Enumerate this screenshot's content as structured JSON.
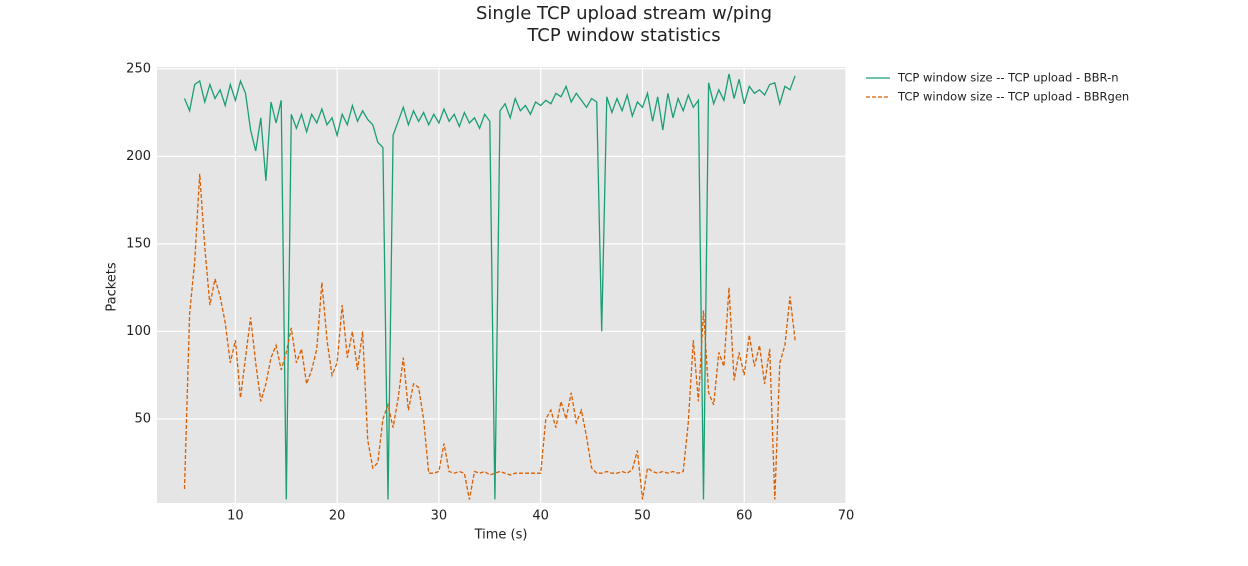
{
  "chart_data": {
    "type": "line",
    "title": "Single TCP upload stream w/ping",
    "subtitle": "TCP window statistics",
    "x_label": "Time (s)",
    "y_label": "Packets",
    "xlim": [
      2.3,
      70
    ],
    "ylim": [
      2,
      251
    ],
    "xticks": [
      10,
      20,
      30,
      40,
      50,
      60,
      70
    ],
    "yticks": [
      50,
      100,
      150,
      200,
      250
    ],
    "grid": true,
    "x": [
      5,
      5.5,
      6,
      6.5,
      7,
      7.5,
      8,
      8.5,
      9,
      9.5,
      10,
      10.5,
      11,
      11.5,
      12,
      12.5,
      13,
      13.5,
      14,
      14.5,
      15,
      15.5,
      16,
      16.5,
      17,
      17.5,
      18,
      18.5,
      19,
      19.5,
      20,
      20.5,
      21,
      21.5,
      22,
      22.5,
      23,
      23.5,
      24,
      24.5,
      25,
      25.5,
      26,
      26.5,
      27,
      27.5,
      28,
      28.5,
      29,
      29.5,
      30,
      30.5,
      31,
      31.5,
      32,
      32.5,
      33,
      33.5,
      34,
      34.5,
      35,
      35.5,
      36,
      36.5,
      37,
      37.5,
      38,
      38.5,
      39,
      39.5,
      40,
      40.5,
      41,
      41.5,
      42,
      42.5,
      43,
      43.5,
      44,
      44.5,
      45,
      45.5,
      46,
      46.5,
      47,
      47.5,
      48,
      48.5,
      49,
      49.5,
      50,
      50.5,
      51,
      51.5,
      52,
      52.5,
      53,
      53.5,
      54,
      54.5,
      55,
      55.5,
      56,
      56.5,
      57,
      57.5,
      58,
      58.5,
      59,
      59.5,
      60,
      60.5,
      61,
      61.5,
      62,
      62.5,
      63,
      63.5,
      64,
      64.5,
      65
    ],
    "series": [
      {
        "name": "TCP window size -- TCP upload - BBR-n",
        "color": "#1b9e77",
        "dash": false,
        "values": [
          233,
          226,
          241,
          243,
          231,
          241,
          233,
          238,
          229,
          241,
          232,
          243,
          236,
          215,
          203,
          222,
          186,
          231,
          219,
          232,
          4,
          224,
          216,
          224,
          214,
          224,
          219,
          227,
          218,
          222,
          212,
          224,
          218,
          229,
          220,
          226,
          221,
          218,
          208,
          205,
          4,
          212,
          220,
          228,
          218,
          226,
          220,
          225,
          218,
          224,
          219,
          227,
          220,
          224,
          217,
          225,
          219,
          222,
          216,
          224,
          220,
          4,
          226,
          230,
          222,
          233,
          226,
          229,
          224,
          231,
          229,
          232,
          230,
          236,
          234,
          240,
          231,
          236,
          232,
          228,
          233,
          231,
          100,
          234,
          225,
          233,
          226,
          235,
          223,
          231,
          228,
          236,
          220,
          234,
          215,
          236,
          222,
          233,
          226,
          235,
          228,
          232,
          4,
          242,
          230,
          238,
          232,
          247,
          233,
          244,
          230,
          240,
          236,
          238,
          235,
          241,
          242,
          230,
          240,
          238,
          246
        ]
      },
      {
        "name": "TCP window size -- TCP upload - BBRgen",
        "color": "#d95f02",
        "dash": true,
        "values": [
          10,
          110,
          140,
          190,
          148,
          115,
          130,
          120,
          105,
          82,
          95,
          62,
          85,
          108,
          82,
          60,
          70,
          85,
          92,
          78,
          88,
          102,
          82,
          90,
          70,
          78,
          90,
          128,
          95,
          75,
          82,
          115,
          85,
          100,
          78,
          100,
          38,
          22,
          25,
          50,
          58,
          45,
          62,
          85,
          55,
          70,
          68,
          50,
          19,
          19,
          20,
          36,
          20,
          19,
          20,
          19,
          4,
          20,
          19,
          20,
          18,
          19,
          20,
          19,
          18,
          19,
          19,
          19,
          19,
          19,
          19,
          50,
          55,
          45,
          60,
          50,
          65,
          48,
          55,
          40,
          22,
          19,
          19,
          20,
          19,
          19,
          20,
          19,
          21,
          32,
          4,
          22,
          20,
          19,
          20,
          19,
          20,
          19,
          20,
          48,
          95,
          60,
          112,
          65,
          58,
          88,
          80,
          125,
          72,
          88,
          75,
          98,
          80,
          92,
          70,
          90,
          4,
          82,
          92,
          120,
          95
        ]
      }
    ]
  }
}
